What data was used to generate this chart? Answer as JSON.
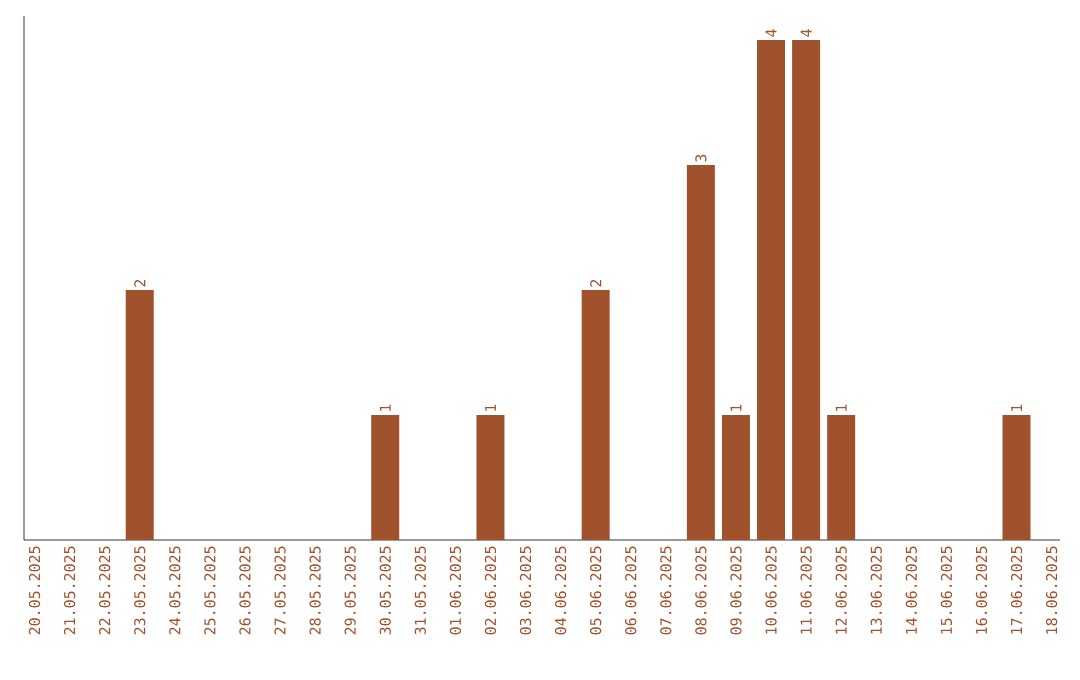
{
  "chart_data": {
    "type": "bar",
    "color": "#a0522d",
    "categories": [
      "20.05.2025",
      "21.05.2025",
      "22.05.2025",
      "23.05.2025",
      "24.05.2025",
      "25.05.2025",
      "26.05.2025",
      "27.05.2025",
      "28.05.2025",
      "29.05.2025",
      "30.05.2025",
      "31.05.2025",
      "01.06.2025",
      "02.06.2025",
      "03.06.2025",
      "04.06.2025",
      "05.06.2025",
      "06.06.2025",
      "07.06.2025",
      "08.06.2025",
      "09.06.2025",
      "10.06.2025",
      "11.06.2025",
      "12.06.2025",
      "13.06.2025",
      "14.06.2025",
      "15.06.2025",
      "16.06.2025",
      "17.06.2025",
      "18.06.2025"
    ],
    "values": [
      0,
      0,
      0,
      2,
      0,
      0,
      0,
      0,
      0,
      0,
      1,
      0,
      0,
      1,
      0,
      0,
      2,
      0,
      0,
      3,
      1,
      4,
      4,
      1,
      0,
      0,
      0,
      0,
      1,
      0
    ],
    "value_labels": [
      null,
      null,
      null,
      "2",
      null,
      null,
      null,
      null,
      null,
      null,
      "1",
      null,
      null,
      "1",
      null,
      null,
      "2",
      null,
      null,
      "3",
      "1",
      "4",
      "4",
      "1",
      null,
      null,
      null,
      null,
      "1",
      null
    ]
  }
}
